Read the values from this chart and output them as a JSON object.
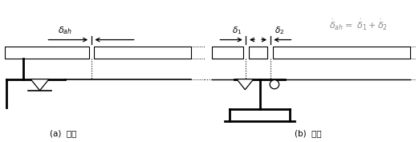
{
  "fig_width": 5.22,
  "fig_height": 1.77,
  "dpi": 100,
  "bg_color": "#ffffff",
  "line_color": "#000000",
  "label_a": "(a)  교대",
  "label_b": "(b)  교각"
}
